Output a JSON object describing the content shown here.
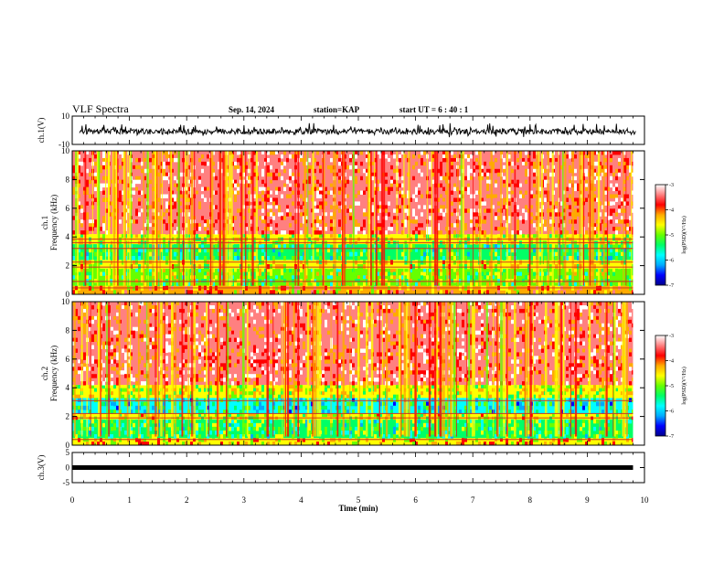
{
  "header": {
    "title": "VLF Spectra",
    "date": "Sep. 14, 2024",
    "station": "station=KAP",
    "start": "start UT =  6 : 40 : 1"
  },
  "chart_data": [
    {
      "type": "line",
      "panel": "ch1-waveform",
      "ylabel": "ch.1(V)",
      "ylim": [
        -10,
        10
      ],
      "y_ticks": [
        "10",
        "-10"
      ],
      "xlim": [
        0,
        10
      ],
      "description_values": {
        "mean": -1,
        "amplitude_range": [
          -6,
          5
        ]
      }
    },
    {
      "type": "heatmap",
      "panel": "ch1-spectrogram",
      "ylabel_line1": "ch.1",
      "ylabel_line2": "Frequency (kHz)",
      "ylim": [
        0,
        10
      ],
      "y_ticks": [
        "0",
        "2",
        "4",
        "6",
        "8",
        "10"
      ],
      "xlim": [
        0,
        10
      ],
      "data_end_min": 9.8,
      "colorbar": {
        "label": "log(PSD)(V²/Hz)",
        "range": [
          -7,
          -3
        ],
        "ticks": [
          "-3",
          "-4",
          "-5",
          "-6",
          "-7"
        ]
      },
      "bands_khz": [
        {
          "low": 0.0,
          "high": 0.6,
          "level": -4.2
        },
        {
          "low": 0.6,
          "high": 1.8,
          "level": -5.0
        },
        {
          "low": 1.8,
          "high": 2.4,
          "level": -4.6
        },
        {
          "low": 2.4,
          "high": 3.5,
          "level": -5.4
        },
        {
          "low": 3.5,
          "high": 4.2,
          "level": -4.8
        },
        {
          "low": 4.2,
          "high": 10.0,
          "level": -3.6
        }
      ],
      "lines_khz": [
        0.45,
        0.9,
        1.9,
        2.25,
        3.2,
        3.6,
        3.85
      ]
    },
    {
      "type": "heatmap",
      "panel": "ch2-spectrogram",
      "ylabel_line1": "ch.2",
      "ylabel_line2": "Frequency (kHz)",
      "ylim": [
        0,
        10
      ],
      "y_ticks": [
        "0",
        "2",
        "4",
        "6",
        "8",
        "10"
      ],
      "xlim": [
        0,
        10
      ],
      "data_end_min": 9.8,
      "colorbar": {
        "label": "log(PSD)(V²/Hz)",
        "range": [
          -7,
          -3
        ],
        "ticks": [
          "-3",
          "-4",
          "-5",
          "-6",
          "-7"
        ]
      },
      "bands_khz": [
        {
          "low": 0.0,
          "high": 0.5,
          "level": -4.4
        },
        {
          "low": 0.5,
          "high": 1.8,
          "level": -5.3
        },
        {
          "low": 1.8,
          "high": 2.2,
          "level": -4.7
        },
        {
          "low": 2.2,
          "high": 3.3,
          "level": -5.7
        },
        {
          "low": 3.3,
          "high": 4.2,
          "level": -4.8
        },
        {
          "low": 4.2,
          "high": 10.0,
          "level": -3.6
        }
      ],
      "lines_khz": [
        0.4,
        1.9,
        2.2,
        3.1
      ]
    },
    {
      "type": "line",
      "panel": "ch3-waveform",
      "ylabel": "ch.3(V)",
      "ylim": [
        -5,
        5
      ],
      "y_ticks": [
        "5",
        "0",
        "-5"
      ],
      "xlim": [
        0,
        10
      ],
      "constant_value": 0,
      "xlabel": "Time (min)",
      "x_ticks": [
        "0",
        "1",
        "2",
        "3",
        "4",
        "5",
        "6",
        "7",
        "8",
        "9",
        "10"
      ]
    }
  ],
  "colors": {
    "scale": [
      "#00008c",
      "#0000ff",
      "#00aaff",
      "#00ffff",
      "#00ff66",
      "#66ff00",
      "#ffff00",
      "#ffaa00",
      "#ff0000",
      "#ff8080",
      "#ffffff"
    ]
  }
}
